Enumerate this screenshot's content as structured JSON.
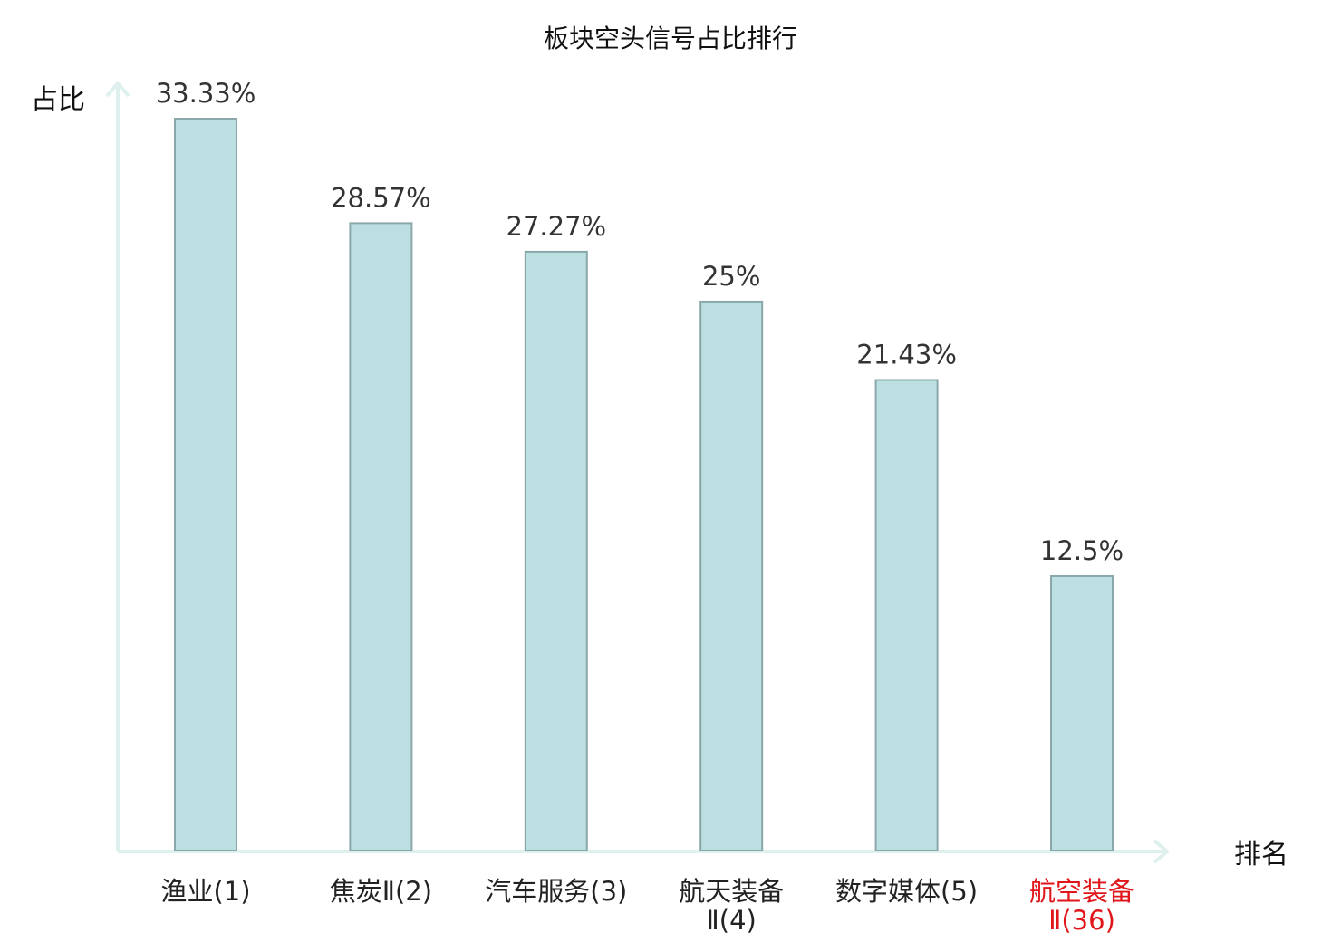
{
  "chart_data": {
    "type": "bar",
    "title": "板块空头信号占比排行",
    "ylabel": "占比",
    "xlabel": "排名",
    "categories": [
      [
        "渔业(1)"
      ],
      [
        "焦炭Ⅱ(2)"
      ],
      [
        "汽车服务(3)"
      ],
      [
        "航天装备",
        "Ⅱ(4)"
      ],
      [
        "数字媒体(5)"
      ],
      [
        "航空装备",
        "Ⅱ(36)"
      ]
    ],
    "values": [
      33.33,
      28.57,
      27.27,
      25,
      21.43,
      12.5
    ],
    "value_labels": [
      "33.33%",
      "28.57%",
      "27.27%",
      "25%",
      "21.43%",
      "12.5%"
    ],
    "highlight_index": 5,
    "ylim": [
      0,
      33.33
    ],
    "grid": false,
    "colors": {
      "bar_fill": "#bce0e2",
      "bar_stroke": "#8aa8aa",
      "axis": "#dff1ef",
      "highlight_label": "#e0161b"
    }
  }
}
